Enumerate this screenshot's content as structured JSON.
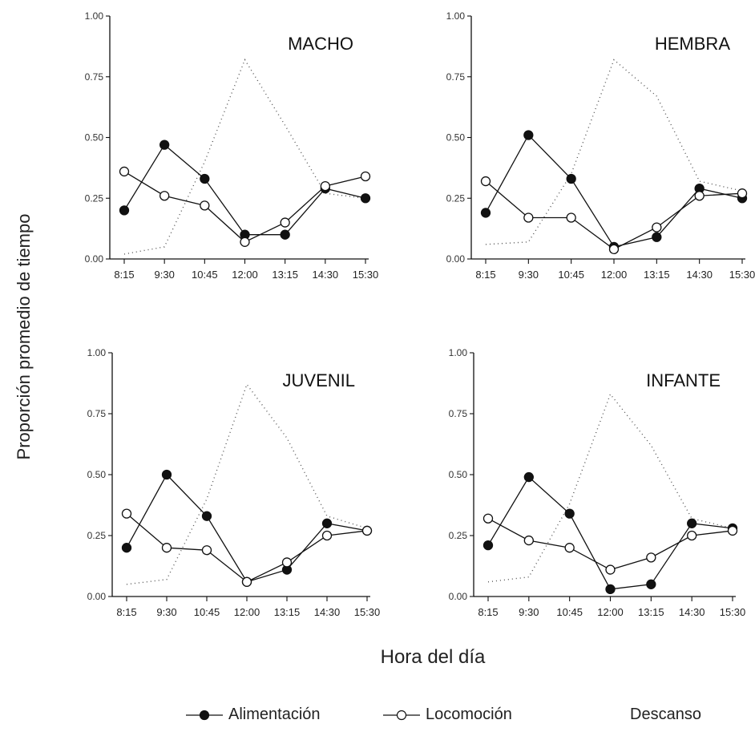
{
  "figure": {
    "ylabel": "Proporción promedio de tiempo",
    "xlabel": "Hora del día"
  },
  "legend": {
    "items": [
      {
        "label": "Alimentación",
        "marker": "filled-circle"
      },
      {
        "label": "Locomoción",
        "marker": "open-circle"
      },
      {
        "label": "Descanso",
        "marker": "dotted-line"
      }
    ]
  },
  "chart_data": [
    {
      "type": "line",
      "title": "MACHO",
      "x_tick_labels": [
        "8:15",
        "9:30",
        "10:45",
        "12:00",
        "13:15",
        "14:30",
        "15:30"
      ],
      "y_tick_labels": [
        "0.00",
        "0.25",
        "0.50",
        "0.75",
        "1.00"
      ],
      "ylim": [
        0,
        1
      ],
      "series": [
        {
          "name": "Alimentación",
          "values": [
            0.2,
            0.47,
            0.33,
            0.1,
            0.1,
            0.29,
            0.25
          ]
        },
        {
          "name": "Locomoción",
          "values": [
            0.36,
            0.26,
            0.22,
            0.07,
            0.15,
            0.3,
            0.34
          ]
        },
        {
          "name": "Descanso",
          "values": [
            0.02,
            0.05,
            0.4,
            0.82,
            0.55,
            0.27,
            0.25
          ]
        }
      ]
    },
    {
      "type": "line",
      "title": "HEMBRA",
      "x_tick_labels": [
        "8:15",
        "9:30",
        "10:45",
        "12:00",
        "13:15",
        "14:30",
        "15:30"
      ],
      "y_tick_labels": [
        "0.00",
        "0.25",
        "0.50",
        "0.75",
        "1.00"
      ],
      "ylim": [
        0,
        1
      ],
      "series": [
        {
          "name": "Alimentación",
          "values": [
            0.19,
            0.51,
            0.33,
            0.05,
            0.09,
            0.29,
            0.25
          ]
        },
        {
          "name": "Locomoción",
          "values": [
            0.32,
            0.17,
            0.17,
            0.04,
            0.13,
            0.26,
            0.27
          ]
        },
        {
          "name": "Descanso",
          "values": [
            0.06,
            0.07,
            0.35,
            0.82,
            0.67,
            0.32,
            0.28
          ]
        }
      ]
    },
    {
      "type": "line",
      "title": "JUVENIL",
      "x_tick_labels": [
        "8:15",
        "9:30",
        "10:45",
        "12:00",
        "13:15",
        "14:30",
        "15:30"
      ],
      "y_tick_labels": [
        "0.00",
        "0.25",
        "0.50",
        "0.75",
        "1.00"
      ],
      "ylim": [
        0,
        1
      ],
      "series": [
        {
          "name": "Alimentación",
          "values": [
            0.2,
            0.5,
            0.33,
            0.06,
            0.11,
            0.3,
            0.27
          ]
        },
        {
          "name": "Locomoción",
          "values": [
            0.34,
            0.2,
            0.19,
            0.06,
            0.14,
            0.25,
            0.27
          ]
        },
        {
          "name": "Descanso",
          "values": [
            0.05,
            0.07,
            0.4,
            0.87,
            0.65,
            0.33,
            0.28
          ]
        }
      ]
    },
    {
      "type": "line",
      "title": "INFANTE",
      "x_tick_labels": [
        "8:15",
        "9:30",
        "10:45",
        "12:00",
        "13:15",
        "14:30",
        "15:30"
      ],
      "y_tick_labels": [
        "0.00",
        "0.25",
        "0.50",
        "0.75",
        "1.00"
      ],
      "ylim": [
        0,
        1
      ],
      "series": [
        {
          "name": "Alimentación",
          "values": [
            0.21,
            0.49,
            0.34,
            0.03,
            0.05,
            0.3,
            0.28
          ]
        },
        {
          "name": "Locomoción",
          "values": [
            0.32,
            0.23,
            0.2,
            0.11,
            0.16,
            0.25,
            0.27
          ]
        },
        {
          "name": "Descanso",
          "values": [
            0.06,
            0.08,
            0.38,
            0.83,
            0.62,
            0.32,
            0.28
          ]
        }
      ]
    }
  ]
}
